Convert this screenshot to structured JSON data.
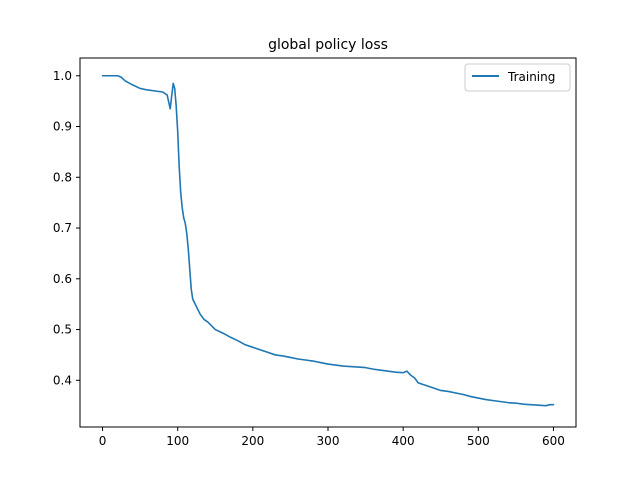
{
  "chart_data": {
    "type": "line",
    "title": "global policy loss",
    "xlabel": "",
    "ylabel": "",
    "xlim": [
      -30,
      630
    ],
    "ylim": [
      0.308,
      1.035
    ],
    "xticks": [
      0,
      100,
      200,
      300,
      400,
      500,
      600
    ],
    "yticks": [
      0.4,
      0.5,
      0.6,
      0.7,
      0.8,
      0.9,
      1.0
    ],
    "xtick_labels": [
      "0",
      "100",
      "200",
      "300",
      "400",
      "500",
      "600"
    ],
    "ytick_labels": [
      "0.4",
      "0.5",
      "0.6",
      "0.7",
      "0.8",
      "0.9",
      "1.0"
    ],
    "grid": false,
    "legend": {
      "position": "top-right",
      "entries": [
        "Training"
      ]
    },
    "series": [
      {
        "name": "Training",
        "color": "#1f77b4",
        "x": [
          0,
          10,
          20,
          25,
          30,
          40,
          50,
          60,
          70,
          80,
          86,
          90,
          92,
          94,
          96,
          98,
          100,
          102,
          104,
          106,
          108,
          110,
          112,
          114,
          116,
          118,
          120,
          125,
          130,
          135,
          140,
          150,
          160,
          170,
          180,
          190,
          200,
          210,
          220,
          230,
          240,
          250,
          260,
          270,
          280,
          290,
          300,
          310,
          320,
          330,
          340,
          350,
          360,
          370,
          380,
          390,
          400,
          405,
          410,
          415,
          420,
          430,
          440,
          450,
          460,
          470,
          480,
          490,
          500,
          510,
          520,
          530,
          540,
          550,
          560,
          570,
          580,
          590,
          595,
          600
        ],
        "y": [
          1.0,
          1.0,
          1.0,
          0.997,
          0.99,
          0.982,
          0.975,
          0.972,
          0.97,
          0.968,
          0.962,
          0.935,
          0.96,
          0.985,
          0.975,
          0.94,
          0.89,
          0.82,
          0.77,
          0.74,
          0.72,
          0.71,
          0.69,
          0.66,
          0.62,
          0.58,
          0.56,
          0.545,
          0.53,
          0.52,
          0.515,
          0.5,
          0.493,
          0.485,
          0.478,
          0.47,
          0.465,
          0.46,
          0.455,
          0.45,
          0.448,
          0.445,
          0.442,
          0.44,
          0.438,
          0.435,
          0.432,
          0.43,
          0.428,
          0.427,
          0.426,
          0.425,
          0.422,
          0.42,
          0.418,
          0.416,
          0.415,
          0.418,
          0.41,
          0.405,
          0.395,
          0.39,
          0.385,
          0.38,
          0.378,
          0.375,
          0.372,
          0.368,
          0.365,
          0.362,
          0.36,
          0.358,
          0.356,
          0.355,
          0.353,
          0.352,
          0.351,
          0.35,
          0.352,
          0.352
        ]
      }
    ]
  }
}
